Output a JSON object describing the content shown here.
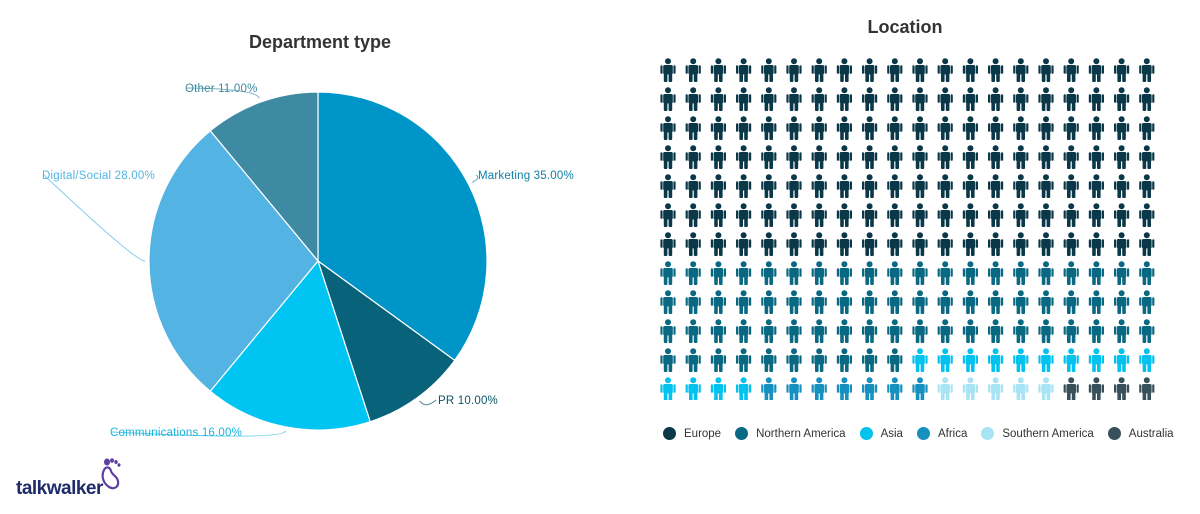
{
  "brand": {
    "name": "talkwalker",
    "colors": {
      "text": "#1f2a6b",
      "mark": "#5c3fa3"
    },
    "icon": "footprint-logo-icon"
  },
  "chart_data": [
    {
      "type": "pie",
      "title": "Department type",
      "slices": [
        {
          "label": "Marketing",
          "value": 35.0,
          "text": "Marketing 35.00%",
          "color": "#0095c8",
          "label_color": "#0f7fa6"
        },
        {
          "label": "PR",
          "value": 10.0,
          "text": "PR 10.00%",
          "color": "#08627a",
          "label_color": "#0b5468"
        },
        {
          "label": "Communications",
          "value": 16.0,
          "text": "Communications 16.00%",
          "color": "#00c4f2",
          "label_color": "#1ab5dd"
        },
        {
          "label": "Digital/Social",
          "value": 28.0,
          "text": "Digital/Social 28.00%",
          "color": "#53b4e3",
          "label_color": "#53b4e3"
        },
        {
          "label": "Other",
          "value": 11.0,
          "text": "Other 11.00%",
          "color": "#3f8aa3",
          "label_color": "#3f8aa3"
        }
      ]
    },
    {
      "type": "pictogram",
      "title": "Location",
      "grid": {
        "rows": 12,
        "cols": 20
      },
      "icon": "person-icon",
      "series": [
        {
          "name": "Europe",
          "count": 140,
          "color": "#0b3848"
        },
        {
          "name": "Northern America",
          "count": 70,
          "color": "#0a6982"
        },
        {
          "name": "Asia",
          "count": 14,
          "color": "#04c2ee"
        },
        {
          "name": "Africa",
          "count": 7,
          "color": "#1691bf"
        },
        {
          "name": "Southern America",
          "count": 5,
          "color": "#a9e4f5"
        },
        {
          "name": "Australia",
          "count": 4,
          "color": "#37505a"
        }
      ],
      "legend_position": "bottom"
    }
  ]
}
